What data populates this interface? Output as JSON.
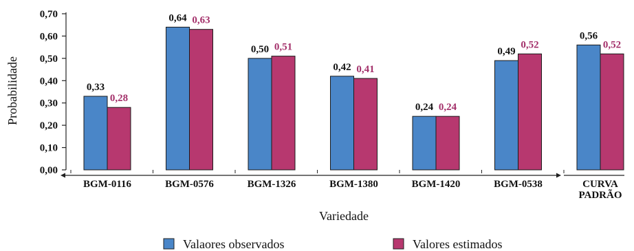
{
  "chart_data": {
    "type": "bar",
    "categories": [
      "BGM-0116",
      "BGM-0576",
      "BGM-1326",
      "BGM-1380",
      "BGM-1420",
      "BGM-0538",
      "CURVA PADRÃO"
    ],
    "series": [
      {
        "name": "Valaores observados",
        "values": [
          0.33,
          0.64,
          0.5,
          0.42,
          0.24,
          0.49,
          0.56
        ],
        "labels": [
          "0,33",
          "0,64",
          "0,50",
          "0,42",
          "0,24",
          "0,49",
          "0,56"
        ],
        "color": "#4a86c8"
      },
      {
        "name": "Valores estimados",
        "values": [
          0.28,
          0.63,
          0.51,
          0.41,
          0.24,
          0.52,
          0.52
        ],
        "labels": [
          "0,28",
          "0,63",
          "0,51",
          "0,41",
          "0,24",
          "0,52",
          "0,52"
        ],
        "color": "#b7386f",
        "label_color": "#a3306a"
      }
    ],
    "xlabel": "Variedade",
    "ylabel": "Probabilidade",
    "ylim": [
      0,
      0.7
    ],
    "yticks": [
      0,
      0.1,
      0.2,
      0.3,
      0.4,
      0.5,
      0.6,
      0.7
    ],
    "ytick_labels": [
      "0,00",
      "0,10",
      "0,20",
      "0,30",
      "0,40",
      "0,50",
      "0,60",
      "0,70"
    ],
    "grid": false,
    "legend_position": "bottom"
  }
}
